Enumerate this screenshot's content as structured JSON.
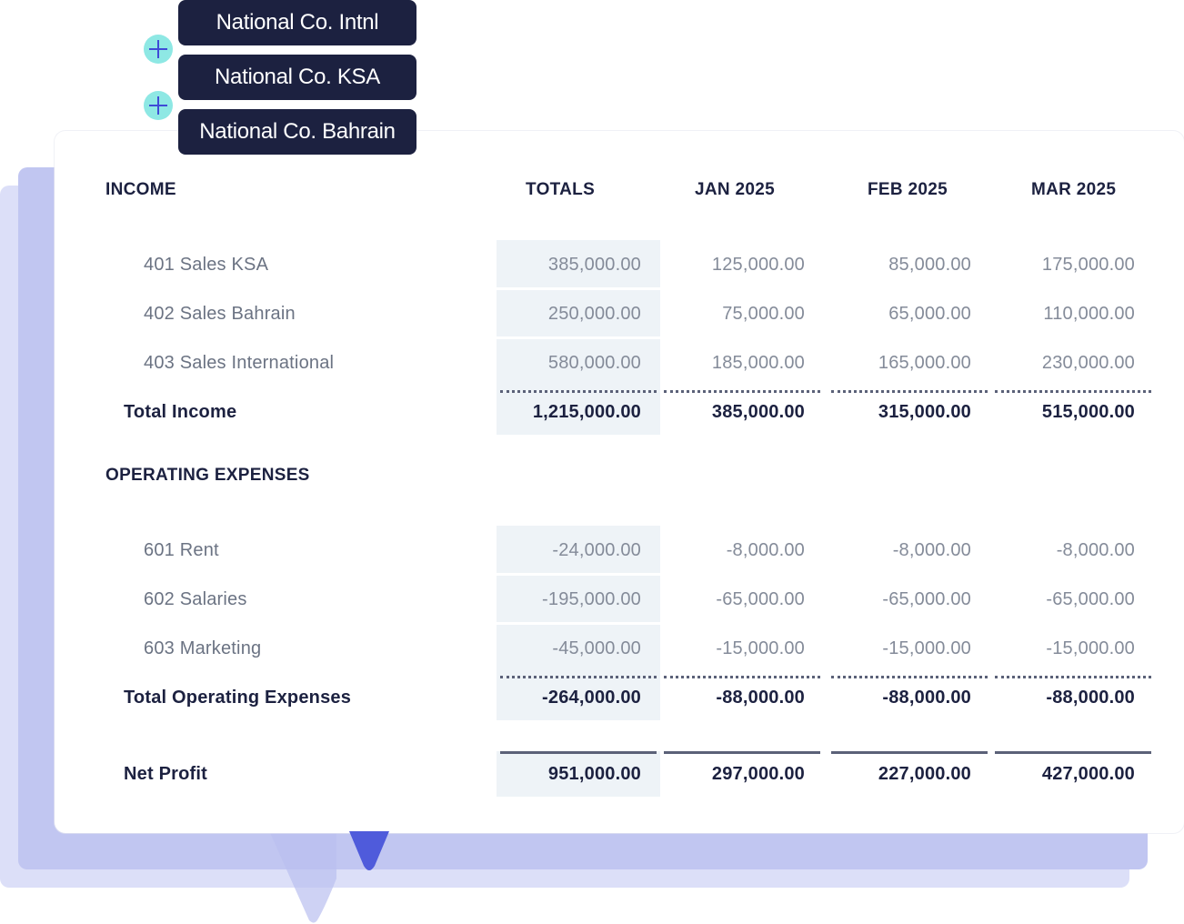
{
  "entities": [
    "National Co. Intnl",
    "National Co. KSA",
    "National Co. Bahrain"
  ],
  "headers": {
    "income": "INCOME",
    "totals": "TOTALS",
    "months": [
      "JAN 2025",
      "FEB 2025",
      "MAR 2025"
    ]
  },
  "income": {
    "rows": [
      {
        "label": "401 Sales KSA",
        "values": [
          "385,000.00",
          "125,000.00",
          "85,000.00",
          "175,000.00"
        ]
      },
      {
        "label": "402 Sales Bahrain",
        "values": [
          "250,000.00",
          "75,000.00",
          "65,000.00",
          "110,000.00"
        ]
      },
      {
        "label": "403 Sales International",
        "values": [
          "580,000.00",
          "185,000.00",
          "165,000.00",
          "230,000.00"
        ]
      }
    ],
    "total": {
      "label": "Total Income",
      "values": [
        "1,215,000.00",
        "385,000.00",
        "315,000.00",
        "515,000.00"
      ]
    }
  },
  "expenses": {
    "title": "OPERATING EXPENSES",
    "rows": [
      {
        "label": "601 Rent",
        "values": [
          "-24,000.00",
          "-8,000.00",
          "-8,000.00",
          "-8,000.00"
        ]
      },
      {
        "label": "602 Salaries",
        "values": [
          "-195,000.00",
          "-65,000.00",
          "-65,000.00",
          "-65,000.00"
        ]
      },
      {
        "label": "603 Marketing",
        "values": [
          "-45,000.00",
          "-15,000.00",
          "-15,000.00",
          "-15,000.00"
        ]
      }
    ],
    "total": {
      "label": "Total Operating Expenses",
      "values": [
        "-264,000.00",
        "-88,000.00",
        "-88,000.00",
        "-88,000.00"
      ]
    }
  },
  "net_profit": {
    "label": "Net Profit",
    "values": [
      "951,000.00",
      "297,000.00",
      "227,000.00",
      "427,000.00"
    ]
  },
  "colors": {
    "pill_bg": "#1c2140",
    "plus_bg": "#8ee8e4",
    "plus_icon": "#3f4bd6",
    "accent": "#4f5bdb",
    "totals_col_bg": "#eef3f7"
  }
}
